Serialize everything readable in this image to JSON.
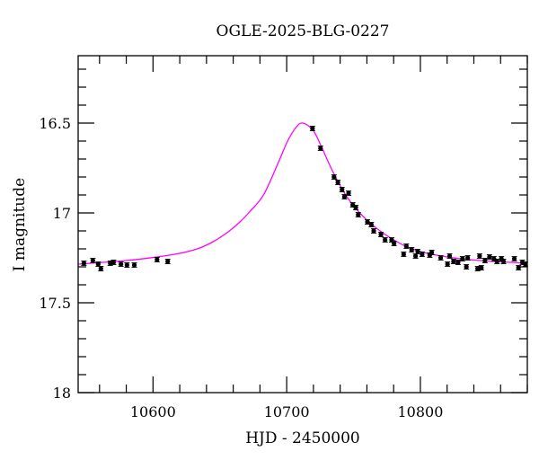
{
  "chart_data": {
    "type": "scatter",
    "title": "OGLE-2025-BLG-0227",
    "xlabel": "HJD - 2450000",
    "ylabel": "I magnitude",
    "xlim": [
      10544,
      10880
    ],
    "ylim": [
      16.125,
      18
    ],
    "y_inverted": true,
    "x_ticks": [
      10600,
      10700,
      10800
    ],
    "y_ticks": [
      16.5,
      17,
      17.5,
      18
    ],
    "y_tick_labels": [
      "16.5",
      "17",
      "17.5",
      "18"
    ],
    "x_tick_labels": [
      "10600",
      "10700",
      "10800"
    ],
    "grid": false,
    "colors": {
      "data": "#000000",
      "model": "#ff00ff"
    },
    "data": {
      "x": [
        10548.3,
        10555,
        10559,
        10561,
        10568,
        10570.5,
        10576,
        10580.5,
        10586,
        10603,
        10611,
        10719.3,
        10725.3,
        10735.4,
        10738.3,
        10741.4,
        10743.2,
        10746.3,
        10749.4,
        10751.7,
        10753.5,
        10760.4,
        10763.3,
        10765.1,
        10770.5,
        10773.6,
        10778.5,
        10780.3,
        10787.5,
        10789.5,
        10793.5,
        10796.4,
        10798,
        10801.3,
        10807,
        10808.5,
        10815.2,
        10820.3,
        10821.9,
        10824.8,
        10828.2,
        10831.5,
        10834.4,
        10835.4,
        10842.8,
        10844.3,
        10845.6,
        10848.3,
        10851.7,
        10855,
        10857.3,
        10860.6,
        10862.2,
        10870.3,
        10873.4,
        10876.3,
        10878.5
      ],
      "y": [
        17.28,
        17.265,
        17.285,
        17.31,
        17.28,
        17.275,
        17.285,
        17.29,
        17.29,
        17.26,
        17.27,
        16.53,
        16.64,
        16.8,
        16.83,
        16.87,
        16.91,
        16.89,
        16.955,
        16.97,
        17.01,
        17.05,
        17.065,
        17.1,
        17.12,
        17.15,
        17.15,
        17.17,
        17.23,
        17.185,
        17.205,
        17.24,
        17.215,
        17.23,
        17.235,
        17.22,
        17.25,
        17.285,
        17.24,
        17.27,
        17.275,
        17.255,
        17.3,
        17.25,
        17.31,
        17.24,
        17.305,
        17.265,
        17.245,
        17.255,
        17.27,
        17.255,
        17.27,
        17.255,
        17.305,
        17.275,
        17.285
      ],
      "yerr": 0.012
    },
    "model": {
      "x": [
        10544,
        10580,
        10603,
        10620,
        10633.6,
        10645,
        10655.9,
        10665,
        10672.7,
        10682.8,
        10694,
        10700.7,
        10707.4,
        10712.3,
        10719.7,
        10725.3,
        10734.2,
        10745,
        10760,
        10780,
        10800,
        10830,
        10860,
        10880
      ],
      "y": [
        17.285,
        17.265,
        17.245,
        17.225,
        17.199,
        17.16,
        17.107,
        17.05,
        16.99,
        16.898,
        16.715,
        16.6,
        16.52,
        16.5,
        16.54,
        16.62,
        16.765,
        16.91,
        17.04,
        17.15,
        17.215,
        17.255,
        17.272,
        17.28
      ]
    }
  }
}
